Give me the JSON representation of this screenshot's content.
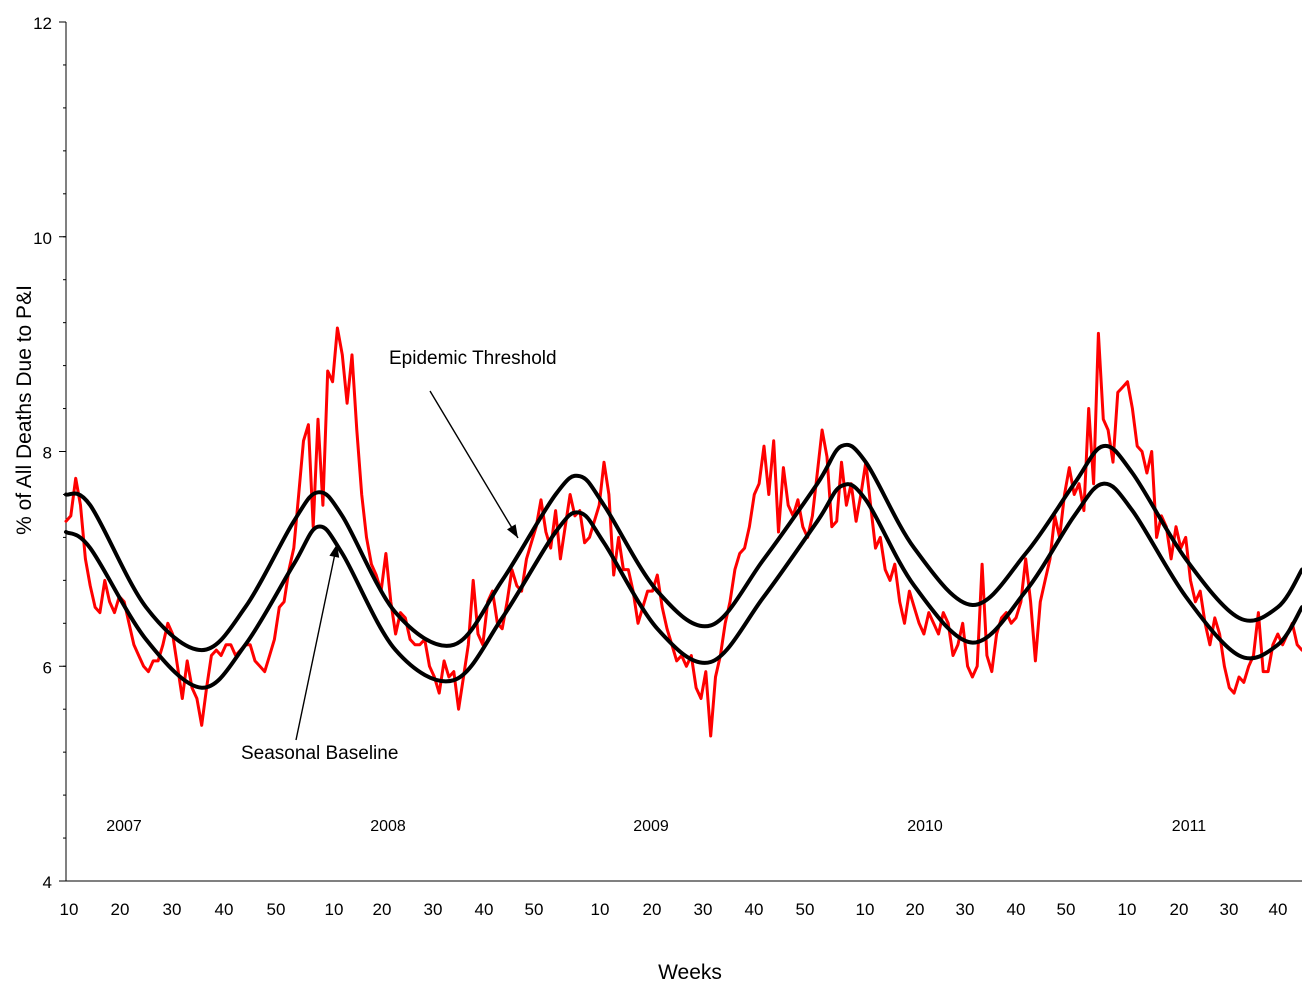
{
  "chart_data": {
    "type": "line",
    "xlabel": "Weeks",
    "ylabel": "% of All Deaths Due to P&I",
    "ylim": [
      4,
      12
    ],
    "yticks": [
      4,
      6,
      8,
      10,
      12
    ],
    "yMinorStep": 0.4,
    "grid": false,
    "legend": "none",
    "x_tick_labels": [
      "10",
      "20",
      "30",
      "40",
      "50",
      "10",
      "20",
      "30",
      "40",
      "50",
      "10",
      "20",
      "30",
      "40",
      "50",
      "10",
      "20",
      "30",
      "40",
      "50",
      "10",
      "20",
      "30",
      "40"
    ],
    "year_labels": [
      "2007",
      "2008",
      "2009",
      "2010",
      "2011"
    ],
    "annotations": {
      "threshold": "Epidemic Threshold",
      "baseline": "Seasonal Baseline"
    },
    "series": [
      {
        "name": "Epidemic Threshold",
        "color": "#000000",
        "anchors": [
          [
            0,
            7.6
          ],
          [
            5,
            7.5
          ],
          [
            16.5,
            6.55
          ],
          [
            28,
            6.15
          ],
          [
            37,
            6.55
          ],
          [
            47,
            7.35
          ],
          [
            52,
            7.62
          ],
          [
            57,
            7.4
          ],
          [
            68,
            6.5
          ],
          [
            80,
            6.2
          ],
          [
            90,
            6.8
          ],
          [
            101,
            7.6
          ],
          [
            106,
            7.77
          ],
          [
            111,
            7.5
          ],
          [
            122,
            6.7
          ],
          [
            133,
            6.38
          ],
          [
            144,
            7.0
          ],
          [
            155,
            7.7
          ],
          [
            160,
            8.05
          ],
          [
            165,
            7.9
          ],
          [
            175,
            7.1
          ],
          [
            187,
            6.57
          ],
          [
            198,
            7.05
          ],
          [
            208,
            7.7
          ],
          [
            214,
            8.05
          ],
          [
            220,
            7.8
          ],
          [
            231,
            7.0
          ],
          [
            242,
            6.45
          ],
          [
            250,
            6.55
          ],
          [
            255,
            6.9
          ]
        ]
      },
      {
        "name": "Seasonal Baseline",
        "color": "#000000",
        "anchors": [
          [
            0,
            7.25
          ],
          [
            5,
            7.1
          ],
          [
            16.5,
            6.25
          ],
          [
            28,
            5.8
          ],
          [
            37,
            6.2
          ],
          [
            47,
            6.95
          ],
          [
            52,
            7.3
          ],
          [
            57,
            7.05
          ],
          [
            68,
            6.15
          ],
          [
            80,
            5.87
          ],
          [
            90,
            6.45
          ],
          [
            101,
            7.25
          ],
          [
            106,
            7.43
          ],
          [
            111,
            7.15
          ],
          [
            122,
            6.35
          ],
          [
            133,
            6.04
          ],
          [
            144,
            6.65
          ],
          [
            155,
            7.35
          ],
          [
            160,
            7.68
          ],
          [
            165,
            7.55
          ],
          [
            175,
            6.75
          ],
          [
            187,
            6.22
          ],
          [
            198,
            6.7
          ],
          [
            208,
            7.4
          ],
          [
            214,
            7.7
          ],
          [
            220,
            7.45
          ],
          [
            231,
            6.65
          ],
          [
            242,
            6.1
          ],
          [
            250,
            6.2
          ],
          [
            255,
            6.55
          ]
        ]
      },
      {
        "name": "P&I",
        "color": "#ff0000",
        "anchors": [
          [
            0,
            7.35
          ],
          [
            1,
            7.4
          ],
          [
            2,
            7.75
          ],
          [
            3,
            7.5
          ],
          [
            4,
            7.0
          ],
          [
            5,
            6.75
          ],
          [
            6,
            6.55
          ],
          [
            7,
            6.5
          ],
          [
            8,
            6.8
          ],
          [
            9,
            6.6
          ],
          [
            10,
            6.5
          ],
          [
            11,
            6.65
          ],
          [
            12,
            6.6
          ],
          [
            13,
            6.4
          ],
          [
            14,
            6.2
          ],
          [
            15,
            6.1
          ],
          [
            16,
            6.0
          ],
          [
            17,
            5.95
          ],
          [
            18,
            6.05
          ],
          [
            19,
            6.05
          ],
          [
            20,
            6.2
          ],
          [
            21,
            6.4
          ],
          [
            22,
            6.3
          ],
          [
            23,
            6.0
          ],
          [
            24,
            5.7
          ],
          [
            25,
            6.05
          ],
          [
            26,
            5.8
          ],
          [
            27,
            5.7
          ],
          [
            28,
            5.45
          ],
          [
            29,
            5.8
          ],
          [
            30,
            6.1
          ],
          [
            31,
            6.15
          ],
          [
            32,
            6.1
          ],
          [
            33,
            6.2
          ],
          [
            34,
            6.2
          ],
          [
            35,
            6.1
          ],
          [
            36,
            6.15
          ],
          [
            37,
            6.2
          ],
          [
            38,
            6.2
          ],
          [
            39,
            6.05
          ],
          [
            40,
            6.0
          ],
          [
            41,
            5.95
          ],
          [
            42,
            6.1
          ],
          [
            43,
            6.25
          ],
          [
            44,
            6.55
          ],
          [
            45,
            6.6
          ],
          [
            46,
            6.9
          ],
          [
            47,
            7.1
          ],
          [
            48,
            7.6
          ],
          [
            49,
            8.1
          ],
          [
            50,
            8.25
          ],
          [
            51,
            7.3
          ],
          [
            52,
            8.3
          ],
          [
            53,
            7.5
          ],
          [
            54,
            8.75
          ],
          [
            55,
            8.65
          ],
          [
            56,
            9.15
          ],
          [
            57,
            8.9
          ],
          [
            58,
            8.45
          ],
          [
            59,
            8.9
          ],
          [
            60,
            8.2
          ],
          [
            61,
            7.6
          ],
          [
            62,
            7.2
          ],
          [
            63,
            6.95
          ],
          [
            64,
            6.85
          ],
          [
            65,
            6.7
          ],
          [
            66,
            7.05
          ],
          [
            67,
            6.6
          ],
          [
            68,
            6.3
          ],
          [
            69,
            6.5
          ],
          [
            70,
            6.45
          ],
          [
            71,
            6.25
          ],
          [
            72,
            6.2
          ],
          [
            73,
            6.2
          ],
          [
            74,
            6.25
          ],
          [
            75,
            6.0
          ],
          [
            76,
            5.9
          ],
          [
            77,
            5.75
          ],
          [
            78,
            6.05
          ],
          [
            79,
            5.9
          ],
          [
            80,
            5.95
          ],
          [
            81,
            5.6
          ],
          [
            82,
            5.9
          ],
          [
            83,
            6.2
          ],
          [
            84,
            6.8
          ],
          [
            85,
            6.3
          ],
          [
            86,
            6.2
          ],
          [
            87,
            6.6
          ],
          [
            88,
            6.7
          ],
          [
            89,
            6.4
          ],
          [
            90,
            6.35
          ],
          [
            91,
            6.6
          ],
          [
            92,
            6.9
          ],
          [
            93,
            6.75
          ],
          [
            94,
            6.7
          ],
          [
            95,
            7.0
          ],
          [
            96,
            7.15
          ],
          [
            97,
            7.3
          ],
          [
            98,
            7.55
          ],
          [
            99,
            7.25
          ],
          [
            100,
            7.1
          ],
          [
            101,
            7.45
          ],
          [
            102,
            7.0
          ],
          [
            103,
            7.3
          ],
          [
            104,
            7.6
          ],
          [
            105,
            7.4
          ],
          [
            106,
            7.45
          ],
          [
            107,
            7.15
          ],
          [
            108,
            7.2
          ],
          [
            109,
            7.35
          ],
          [
            110,
            7.5
          ],
          [
            111,
            7.9
          ],
          [
            112,
            7.6
          ],
          [
            113,
            6.85
          ],
          [
            114,
            7.2
          ],
          [
            115,
            6.9
          ],
          [
            116,
            6.9
          ],
          [
            117,
            6.7
          ],
          [
            118,
            6.4
          ],
          [
            119,
            6.55
          ],
          [
            120,
            6.7
          ],
          [
            121,
            6.7
          ],
          [
            122,
            6.85
          ],
          [
            123,
            6.55
          ],
          [
            124,
            6.35
          ],
          [
            125,
            6.2
          ],
          [
            126,
            6.05
          ],
          [
            127,
            6.1
          ],
          [
            128,
            6.0
          ],
          [
            129,
            6.1
          ],
          [
            130,
            5.8
          ],
          [
            131,
            5.7
          ],
          [
            132,
            5.95
          ],
          [
            133,
            5.35
          ],
          [
            134,
            5.9
          ],
          [
            135,
            6.1
          ],
          [
            136,
            6.4
          ],
          [
            137,
            6.6
          ],
          [
            138,
            6.9
          ],
          [
            139,
            7.05
          ],
          [
            140,
            7.1
          ],
          [
            141,
            7.3
          ],
          [
            142,
            7.6
          ],
          [
            143,
            7.7
          ],
          [
            144,
            8.05
          ],
          [
            145,
            7.6
          ],
          [
            146,
            8.1
          ],
          [
            147,
            7.25
          ],
          [
            148,
            7.85
          ],
          [
            149,
            7.5
          ],
          [
            150,
            7.4
          ],
          [
            151,
            7.55
          ],
          [
            152,
            7.3
          ],
          [
            153,
            7.2
          ],
          [
            154,
            7.4
          ],
          [
            155,
            7.8
          ],
          [
            156,
            8.2
          ],
          [
            157,
            7.95
          ],
          [
            158,
            7.3
          ],
          [
            159,
            7.35
          ],
          [
            160,
            7.9
          ],
          [
            161,
            7.5
          ],
          [
            162,
            7.7
          ],
          [
            163,
            7.35
          ],
          [
            164,
            7.6
          ],
          [
            165,
            7.9
          ],
          [
            166,
            7.5
          ],
          [
            167,
            7.1
          ],
          [
            168,
            7.2
          ],
          [
            169,
            6.9
          ],
          [
            170,
            6.8
          ],
          [
            171,
            6.95
          ],
          [
            172,
            6.6
          ],
          [
            173,
            6.4
          ],
          [
            174,
            6.7
          ],
          [
            175,
            6.55
          ],
          [
            176,
            6.4
          ],
          [
            177,
            6.3
          ],
          [
            178,
            6.5
          ],
          [
            179,
            6.4
          ],
          [
            180,
            6.3
          ],
          [
            181,
            6.5
          ],
          [
            182,
            6.4
          ],
          [
            183,
            6.1
          ],
          [
            184,
            6.2
          ],
          [
            185,
            6.4
          ],
          [
            186,
            6.0
          ],
          [
            187,
            5.9
          ],
          [
            188,
            6.0
          ],
          [
            189,
            6.95
          ],
          [
            190,
            6.1
          ],
          [
            191,
            5.95
          ],
          [
            192,
            6.3
          ],
          [
            193,
            6.45
          ],
          [
            194,
            6.5
          ],
          [
            195,
            6.4
          ],
          [
            196,
            6.45
          ],
          [
            197,
            6.6
          ],
          [
            198,
            7.0
          ],
          [
            199,
            6.6
          ],
          [
            200,
            6.05
          ],
          [
            201,
            6.6
          ],
          [
            202,
            6.8
          ],
          [
            203,
            7.0
          ],
          [
            204,
            7.4
          ],
          [
            205,
            7.2
          ],
          [
            206,
            7.6
          ],
          [
            207,
            7.85
          ],
          [
            208,
            7.6
          ],
          [
            209,
            7.7
          ],
          [
            210,
            7.45
          ],
          [
            211,
            8.4
          ],
          [
            212,
            7.7
          ],
          [
            213,
            9.1
          ],
          [
            214,
            8.3
          ],
          [
            215,
            8.2
          ],
          [
            216,
            7.9
          ],
          [
            217,
            8.55
          ],
          [
            218,
            8.6
          ],
          [
            219,
            8.65
          ],
          [
            220,
            8.4
          ],
          [
            221,
            8.05
          ],
          [
            222,
            8.0
          ],
          [
            223,
            7.8
          ],
          [
            224,
            8.0
          ],
          [
            225,
            7.2
          ],
          [
            226,
            7.4
          ],
          [
            227,
            7.3
          ],
          [
            228,
            7.0
          ],
          [
            229,
            7.3
          ],
          [
            230,
            7.1
          ],
          [
            231,
            7.2
          ],
          [
            232,
            6.8
          ],
          [
            233,
            6.6
          ],
          [
            234,
            6.7
          ],
          [
            235,
            6.4
          ],
          [
            236,
            6.2
          ],
          [
            237,
            6.45
          ],
          [
            238,
            6.3
          ],
          [
            239,
            6.0
          ],
          [
            240,
            5.8
          ],
          [
            241,
            5.75
          ],
          [
            242,
            5.9
          ],
          [
            243,
            5.85
          ],
          [
            244,
            6.0
          ],
          [
            245,
            6.1
          ],
          [
            246,
            6.5
          ],
          [
            247,
            5.95
          ],
          [
            248,
            5.95
          ],
          [
            249,
            6.2
          ],
          [
            250,
            6.3
          ],
          [
            251,
            6.2
          ],
          [
            252,
            6.3
          ],
          [
            253,
            6.4
          ],
          [
            254,
            6.2
          ],
          [
            255,
            6.15
          ]
        ]
      }
    ]
  }
}
